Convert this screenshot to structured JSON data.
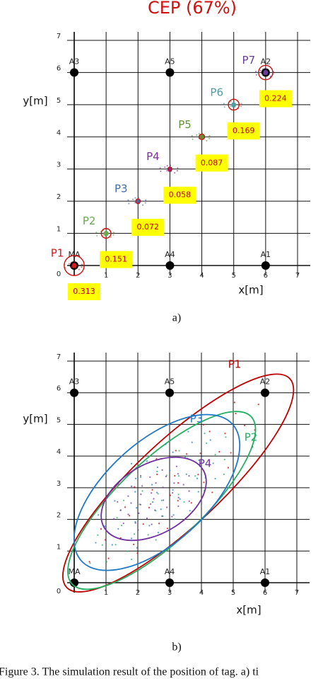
{
  "chart_data": [
    {
      "type": "scatter",
      "title": "CEP (67%)",
      "xlabel": "x[m]",
      "ylabel": "y[m]",
      "panel_label": "a)",
      "xlim": [
        0,
        7
      ],
      "ylim": [
        0,
        7
      ],
      "xticks": [
        1,
        2,
        3,
        4,
        5,
        6,
        7
      ],
      "yticks": [
        0,
        1,
        2,
        3,
        4,
        5,
        6,
        7
      ],
      "grid": true,
      "anchors": [
        {
          "name": "MA",
          "x": 0,
          "y": 0
        },
        {
          "name": "A4",
          "x": 3,
          "y": 0
        },
        {
          "name": "A1",
          "x": 6,
          "y": 0
        },
        {
          "name": "A3",
          "x": 0,
          "y": 6
        },
        {
          "name": "A5",
          "x": 3,
          "y": 6
        },
        {
          "name": "A2",
          "x": 6,
          "y": 6
        }
      ],
      "points": [
        {
          "name": "P1",
          "x": 0,
          "y": 0,
          "cep": 0.313,
          "color": "#d81b1b"
        },
        {
          "name": "P2",
          "x": 1,
          "y": 1,
          "cep": 0.151,
          "color": "#6aa84f"
        },
        {
          "name": "P3",
          "x": 2,
          "y": 2,
          "cep": 0.072,
          "color": "#3d6fb6"
        },
        {
          "name": "P4",
          "x": 3,
          "y": 3,
          "cep": 0.058,
          "color": "#7b2d9c"
        },
        {
          "name": "P5",
          "x": 4,
          "y": 4,
          "cep": 0.087,
          "color": "#5f9232"
        },
        {
          "name": "P6",
          "x": 5,
          "y": 5,
          "cep": 0.169,
          "color": "#4f9fa0"
        },
        {
          "name": "P7",
          "x": 6,
          "y": 6,
          "cep": 0.224,
          "color": "#6a3d9a"
        }
      ]
    },
    {
      "type": "ellipse",
      "xlabel": "x[m]",
      "ylabel": "y[m]",
      "panel_label": "b)",
      "xlim": [
        0,
        7
      ],
      "ylim": [
        0,
        7
      ],
      "xticks": [
        1,
        2,
        3,
        4,
        5,
        6,
        7
      ],
      "yticks": [
        0,
        1,
        2,
        3,
        4,
        5,
        6,
        7
      ],
      "grid": true,
      "anchors": [
        {
          "name": "MA",
          "x": 0,
          "y": 0
        },
        {
          "name": "A4",
          "x": 3,
          "y": 0
        },
        {
          "name": "A1",
          "x": 6,
          "y": 0
        },
        {
          "name": "A3",
          "x": 0,
          "y": 6
        },
        {
          "name": "A5",
          "x": 3,
          "y": 6
        },
        {
          "name": "A2",
          "x": 6,
          "y": 6
        }
      ],
      "ellipses": [
        {
          "name": "P1",
          "cx": 3.27,
          "cy": 3.15,
          "rx": 4.8,
          "ry": 1.35,
          "angle": 43,
          "color": "#c00000"
        },
        {
          "name": "P2",
          "cx": 2.75,
          "cy": 2.6,
          "rx": 3.85,
          "ry": 1.3,
          "angle": 43,
          "color": "#22b060"
        },
        {
          "name": "P3",
          "cx": 2.6,
          "cy": 2.85,
          "rx": 3.2,
          "ry": 1.6,
          "angle": 42,
          "color": "#1f78c8"
        },
        {
          "name": "P4",
          "cx": 2.5,
          "cy": 2.65,
          "rx": 1.8,
          "ry": 1.1,
          "angle": 30,
          "color": "#7030a0"
        }
      ]
    }
  ],
  "caption": "Figure 3. The simulation result of the position of tag. a) ti"
}
